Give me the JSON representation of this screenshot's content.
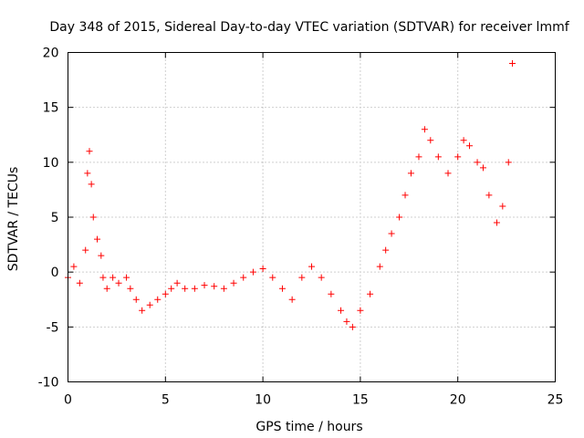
{
  "chart_data": {
    "type": "scatter",
    "title": "Day 348 of 2015, Sidereal Day-to-day VTEC variation (SDTVAR) for receiver lmmf",
    "xlabel": "GPS time / hours",
    "ylabel": "SDTVAR / TECUs",
    "xlim": [
      0,
      25
    ],
    "ylim": [
      -10,
      20
    ],
    "xticks": [
      0,
      5,
      10,
      15,
      20,
      25
    ],
    "yticks": [
      -10,
      -5,
      0,
      5,
      10,
      15,
      20
    ],
    "grid": true,
    "marker": "plus",
    "color": "#ff0000",
    "series": [
      {
        "name": "SDTVAR",
        "x": [
          0.0,
          0.3,
          0.6,
          0.9,
          1.0,
          1.1,
          1.2,
          1.3,
          1.5,
          1.7,
          1.8,
          2.0,
          2.3,
          2.6,
          3.0,
          3.2,
          3.5,
          3.8,
          4.2,
          4.6,
          5.0,
          5.3,
          5.6,
          6.0,
          6.5,
          7.0,
          7.5,
          8.0,
          8.5,
          9.0,
          9.5,
          10.0,
          10.5,
          11.0,
          11.5,
          12.0,
          12.5,
          13.0,
          13.5,
          14.0,
          14.3,
          14.6,
          15.0,
          15.5,
          16.0,
          16.3,
          16.6,
          17.0,
          17.3,
          17.6,
          18.0,
          18.3,
          18.6,
          19.0,
          19.5,
          20.0,
          20.3,
          20.6,
          21.0,
          21.3,
          21.6,
          22.0,
          22.3,
          22.6,
          22.8
        ],
        "y": [
          -0.5,
          0.5,
          -1.0,
          2.0,
          9.0,
          11.0,
          8.0,
          5.0,
          3.0,
          1.5,
          -0.5,
          -1.5,
          -0.5,
          -1.0,
          -0.5,
          -1.5,
          -2.5,
          -3.5,
          -3.0,
          -2.5,
          -2.0,
          -1.5,
          -1.0,
          -1.5,
          -1.5,
          -1.2,
          -1.3,
          -1.5,
          -1.0,
          -0.5,
          0.0,
          0.3,
          -0.5,
          -1.5,
          -2.5,
          -0.5,
          0.5,
          -0.5,
          -2.0,
          -3.5,
          -4.5,
          -5.0,
          -3.5,
          -2.0,
          0.5,
          2.0,
          3.5,
          5.0,
          7.0,
          9.0,
          10.5,
          13.0,
          12.0,
          10.5,
          9.0,
          10.5,
          12.0,
          11.5,
          10.0,
          9.5,
          7.0,
          4.5,
          6.0,
          10.0,
          19.0
        ]
      }
    ]
  }
}
